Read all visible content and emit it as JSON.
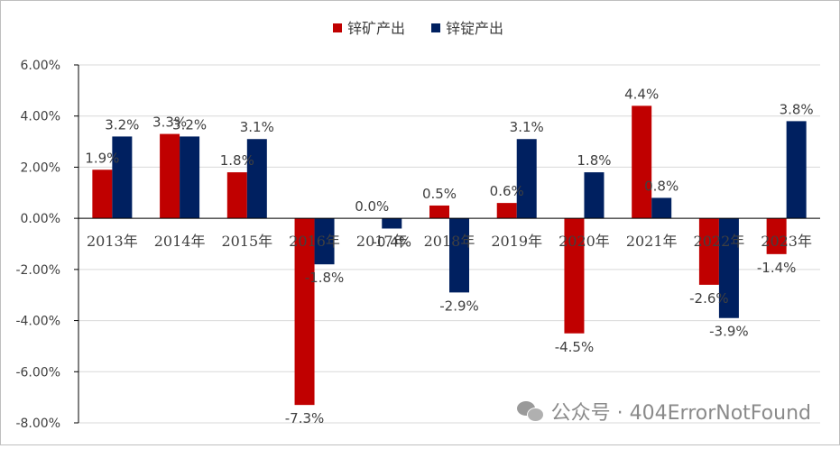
{
  "chart_data": {
    "type": "bar",
    "title": "",
    "xlabel": "",
    "ylabel": "",
    "categories": [
      "2013年",
      "2014年",
      "2015年",
      "2016年",
      "2017年",
      "2018年",
      "2019年",
      "2020年",
      "2021年",
      "2022年",
      "2023年"
    ],
    "series": [
      {
        "name": "锌矿产出",
        "color": "#c00000",
        "values": [
          1.9,
          3.3,
          1.8,
          -7.3,
          0.0,
          0.5,
          0.6,
          -4.5,
          4.4,
          -2.6,
          -1.4
        ],
        "labels": [
          "1.9%",
          "3.3%",
          "1.8%",
          "-7.3%",
          "0.0%",
          "0.5%",
          "0.6%",
          "-4.5%",
          "4.4%",
          "-2.6%",
          "-1.4%"
        ]
      },
      {
        "name": "锌锭产出",
        "color": "#002060",
        "values": [
          3.2,
          3.2,
          3.1,
          -1.8,
          -0.4,
          -2.9,
          3.1,
          1.8,
          0.8,
          -3.9,
          3.8
        ],
        "labels": [
          "3.2%",
          "3.2%",
          "3.1%",
          "-1.8%",
          "-0.4%",
          "-2.9%",
          "3.1%",
          "1.8%",
          "0.8%",
          "-3.9%",
          "3.8%"
        ]
      }
    ],
    "ylim": [
      -8,
      6
    ],
    "yticks": [
      6,
      4,
      2,
      0,
      -2,
      -4,
      -6,
      -8
    ],
    "ytick_labels": [
      "6.00%",
      "4.00%",
      "2.00%",
      "0.00%",
      "-2.00%",
      "-4.00%",
      "-6.00%",
      "-8.00%"
    ],
    "grid": true,
    "legend_position": "top-center"
  },
  "watermark": {
    "icon": "wechat-icon",
    "text": "公众号 · 404ErrorNotFound"
  }
}
